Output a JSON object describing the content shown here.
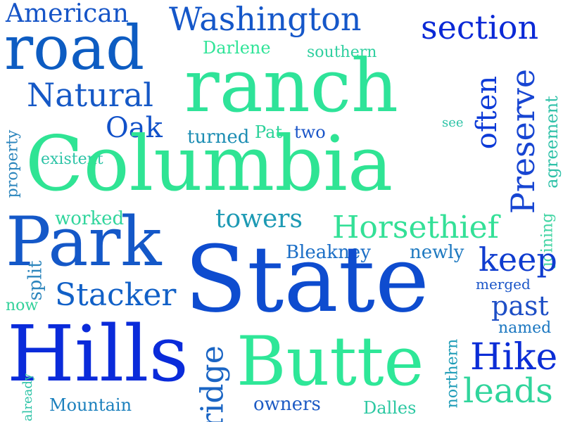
{
  "words": [
    {
      "text": "American",
      "color": "#1554c7"
    },
    {
      "text": "Washington",
      "color": "#1557c9"
    },
    {
      "text": "section",
      "color": "#0b29d6"
    },
    {
      "text": "road",
      "color": "#0d5cc2"
    },
    {
      "text": "Darlene",
      "color": "#30e498"
    },
    {
      "text": "southern",
      "color": "#2fcf9f"
    },
    {
      "text": "ranch",
      "color": "#2ee399"
    },
    {
      "text": "Natural",
      "color": "#1558c6"
    },
    {
      "text": "Preserve",
      "color": "#1745d2"
    },
    {
      "text": "often",
      "color": "#0c3ad7"
    },
    {
      "text": "agreement",
      "color": "#2fc1a8"
    },
    {
      "text": "Oak",
      "color": "#1151c9"
    },
    {
      "text": "turned",
      "color": "#1c8db3"
    },
    {
      "text": "Pat",
      "color": "#2bd199"
    },
    {
      "text": "two",
      "color": "#1a55c8"
    },
    {
      "text": "see",
      "color": "#2cc3a6"
    },
    {
      "text": "property",
      "color": "#2d86bd"
    },
    {
      "text": "existent",
      "color": "#2cc3a6"
    },
    {
      "text": "Columbia",
      "color": "#2fe494"
    },
    {
      "text": "joining",
      "color": "#3fd4a2"
    },
    {
      "text": "worked",
      "color": "#30d59c"
    },
    {
      "text": "towers",
      "color": "#1d9ab4"
    },
    {
      "text": "Horsethief",
      "color": "#33e097"
    },
    {
      "text": "Park",
      "color": "#1458c8"
    },
    {
      "text": "Bleakney",
      "color": "#1b6ec6"
    },
    {
      "text": "newly",
      "color": "#1e79c0"
    },
    {
      "text": "keep",
      "color": "#0f3ccf"
    },
    {
      "text": "split",
      "color": "#2d86bd"
    },
    {
      "text": "State",
      "color": "#0e4ccf"
    },
    {
      "text": "merged",
      "color": "#1a55c8"
    },
    {
      "text": "Stacker",
      "color": "#1160c7"
    },
    {
      "text": "now",
      "color": "#32d19a"
    },
    {
      "text": "past",
      "color": "#1e4fc6"
    },
    {
      "text": "named",
      "color": "#1976c0"
    },
    {
      "text": "Hills",
      "color": "#0a2bda"
    },
    {
      "text": "ridge",
      "color": "#1a65c4"
    },
    {
      "text": "Butte",
      "color": "#2ee798"
    },
    {
      "text": "Hike",
      "color": "#0b2dd6"
    },
    {
      "text": "northern",
      "color": "#1b9bb6"
    },
    {
      "text": "already",
      "color": "#2cc3a6"
    },
    {
      "text": "leads",
      "color": "#30d59c"
    },
    {
      "text": "Mountain",
      "color": "#1b80bd"
    },
    {
      "text": "owners",
      "color": "#1d5bc4"
    },
    {
      "text": "Dalles",
      "color": "#2cc8a2"
    }
  ]
}
